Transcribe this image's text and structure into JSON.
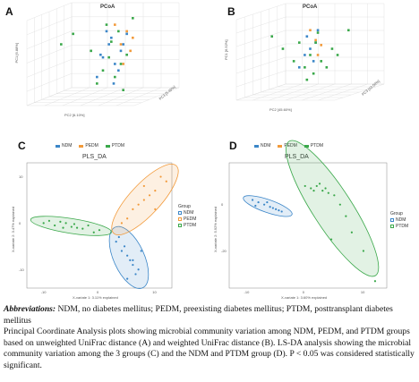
{
  "panels": {
    "a": {
      "label": "A",
      "title": "PCoA",
      "xlabel": "PC2 [6.10%]",
      "ylabel": "PC1 [6.88%]",
      "zlabel": "PC3 [5.45%]"
    },
    "b": {
      "label": "B",
      "title": "PCoA",
      "xlabel": "PC2 [45.60%]",
      "ylabel": "PC1 [6.52%]",
      "zlabel": "PC3 [10.50%]"
    },
    "c": {
      "label": "C",
      "title": "PLS_DA",
      "xlabel": "X-variate 1: 3.11% explained",
      "ylabel": "X-variate 2: 3.47% explained",
      "legend_title": "Group"
    },
    "d": {
      "label": "D",
      "title": "PLS_DA",
      "xlabel": "X-variate 1: 3.60% explained",
      "ylabel": "X-variate 2: 5.92% explained",
      "legend_title": "Group"
    }
  },
  "groups": [
    {
      "name": "NDM",
      "color": "#3b86c8"
    },
    {
      "name": "PEDM",
      "color": "#f29a3a"
    },
    {
      "name": "PTDM",
      "color": "#3aa84a"
    }
  ],
  "caption": {
    "abbr_label": "Abbreviations:",
    "abbr_text": " NDM, no diabetes mellitus; PEDM, preexisting diabetes mellitus; PTDM, posttransplant diabetes mellitus",
    "line2": "Principal Coordinate Analysis plots showing microbial community variation among NDM, PEDM, and PTDM groups based on unweighted UniFrac distance (A) and weighted UniFrac distance (B). LS-DA analysis showing the microbial community variation among the 3 groups (C) and the NDM and PTDM group (D). P < 0.05 was considered statistically significant."
  },
  "chart_data": [
    {
      "type": "scatter",
      "title": "PCoA",
      "xlabel": "PC2 [6.10%]",
      "ylabel": "PC1 [6.88%]",
      "series": [
        {
          "name": "NDM",
          "x": [
            0.05,
            0.1,
            0.15,
            0.2,
            0.0,
            0.12,
            0.08,
            0.18,
            0.22,
            0.03,
            0.14,
            0.25
          ],
          "y": [
            0.1,
            0.2,
            0.05,
            0.15,
            -0.05,
            0.25,
            0.3,
            0.0,
            0.2,
            0.12,
            -0.1,
            0.28
          ]
        },
        {
          "name": "PEDM",
          "x": [
            0.2,
            0.25,
            0.3,
            0.15,
            0.28,
            0.22
          ],
          "y": [
            0.2,
            0.3,
            0.25,
            0.35,
            0.15,
            0.05
          ]
        },
        {
          "name": "PTDM",
          "x": [
            -0.3,
            -0.2,
            0.05,
            0.1,
            0.15,
            0.2,
            0.25,
            0.0,
            -0.05,
            0.12,
            0.18,
            0.08,
            0.3,
            0.22
          ],
          "y": [
            0.2,
            0.28,
            0.0,
            0.1,
            -0.05,
            0.05,
            0.12,
            -0.1,
            0.15,
            0.22,
            0.3,
            0.35,
            0.4,
            -0.15
          ]
        }
      ]
    },
    {
      "type": "scatter",
      "title": "PCoA",
      "xlabel": "PC2 [45.60%]",
      "ylabel": "PC1 [6.52%]",
      "series": [
        {
          "name": "NDM",
          "x": [
            0.0,
            0.05,
            0.1,
            0.02,
            0.08,
            0.12,
            -0.05
          ],
          "y": [
            0.1,
            0.15,
            0.2,
            0.25,
            0.05,
            0.3,
            0.0
          ]
        },
        {
          "name": "PEDM",
          "x": [
            0.1,
            0.15,
            0.05,
            0.12
          ],
          "y": [
            0.22,
            0.18,
            0.3,
            0.1
          ]
        },
        {
          "name": "PTDM",
          "x": [
            -0.3,
            -0.2,
            -0.1,
            0.0,
            0.05,
            0.1,
            0.15,
            0.2,
            0.25,
            0.3,
            0.08,
            0.12,
            0.4,
            0.02,
            -0.05
          ],
          "y": [
            0.25,
            0.15,
            0.05,
            0.0,
            0.1,
            0.2,
            0.05,
            0.0,
            0.15,
            0.1,
            -0.05,
            0.28,
            0.3,
            -0.1,
            0.2
          ]
        }
      ]
    },
    {
      "type": "scatter",
      "title": "PLS_DA",
      "xlabel": "X-variate 1: 3.11% explained",
      "ylabel": "X-variate 2: 3.47% explained",
      "xlim": [
        -13,
        13
      ],
      "ylim": [
        -14,
        13
      ],
      "x_ticks": [
        -10,
        0,
        10
      ],
      "y_ticks": [
        -10,
        0,
        10
      ],
      "series": [
        {
          "name": "NDM",
          "x": [
            3,
            4,
            5,
            6,
            7,
            5.5,
            4.5,
            6.5,
            5,
            3.5,
            7.5,
            6
          ],
          "y": [
            -4,
            -6,
            -7,
            -9,
            -10,
            -8,
            -5,
            -11,
            -12,
            -3,
            -6,
            -8
          ]
        },
        {
          "name": "PEDM",
          "x": [
            4,
            6,
            8,
            10,
            12,
            7,
            9,
            11,
            5,
            8,
            10
          ],
          "y": [
            0,
            3,
            5,
            7,
            9,
            4,
            6,
            10,
            1,
            8,
            3
          ]
        },
        {
          "name": "PTDM",
          "x": [
            -10,
            -8,
            -6,
            -4,
            -2,
            0,
            -5,
            -3,
            -7,
            -1,
            -9,
            -4.5,
            -6.5
          ],
          "y": [
            0,
            -0.5,
            0,
            -1,
            -0.5,
            -1.5,
            -0.8,
            -1.2,
            0.3,
            -2,
            0.5,
            -0.2,
            -1
          ]
        }
      ]
    },
    {
      "type": "scatter",
      "title": "PLS_DA",
      "xlabel": "X-variate 1: 3.60% explained",
      "ylabel": "X-variate 2: 5.92% explained",
      "xlim": [
        -13,
        14
      ],
      "ylim": [
        -36,
        18
      ],
      "x_ticks": [
        -10,
        0,
        10
      ],
      "y_ticks": [
        -20,
        0
      ],
      "series": [
        {
          "name": "NDM",
          "x": [
            -9,
            -8,
            -7,
            -6,
            -5,
            -4,
            -8.5,
            -6.5,
            -5.5,
            -4.5
          ],
          "y": [
            2,
            1,
            0,
            -1,
            -2,
            -3,
            -0.5,
            1,
            -1.5,
            -2.5
          ]
        },
        {
          "name": "PTDM",
          "x": [
            0,
            1,
            2,
            3,
            4,
            5,
            6,
            7,
            8,
            2.5,
            3.5,
            1.5,
            4.5,
            10,
            12
          ],
          "y": [
            8,
            7,
            8,
            6,
            5,
            4,
            0,
            -5,
            -12,
            9,
            7,
            6,
            -15,
            -20,
            -33
          ]
        }
      ]
    }
  ]
}
